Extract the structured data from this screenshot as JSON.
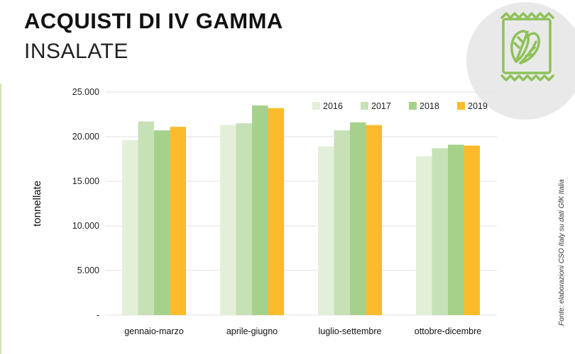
{
  "header": {
    "title": "ACQUISTI DI IV GAMMA",
    "subtitle": "INSALATE"
  },
  "source_note": "Fonte: elaborazioni CSO Italy su dati GfK Italia",
  "colors": {
    "s2016": "#e3f0d8",
    "s2017": "#c6e1b6",
    "s2018": "#a6d18b",
    "s2019": "#fbbb2b",
    "icon": "#8fc15a",
    "badge_bg": "#e9e9e9"
  },
  "icon": {
    "name": "salad-bag-icon"
  },
  "chart_data": {
    "type": "bar",
    "title": "ACQUISTI DI IV GAMMA – INSALATE",
    "xlabel": "",
    "ylabel": "tonnellate",
    "ylim": [
      0,
      25000
    ],
    "yticks": [
      0,
      5000,
      10000,
      15000,
      20000,
      25000
    ],
    "ytick_labels": [
      "-",
      "5.000",
      "10.000",
      "15.000",
      "20.000",
      "25.000"
    ],
    "grid": true,
    "legend_position": "top-right",
    "categories": [
      "gennaio-marzo",
      "aprile-giugno",
      "luglio-settembre",
      "ottobre-dicembre"
    ],
    "series": [
      {
        "name": "2016",
        "values": [
          19600,
          21300,
          18900,
          17800
        ]
      },
      {
        "name": "2017",
        "values": [
          21700,
          21500,
          20700,
          18700
        ]
      },
      {
        "name": "2018",
        "values": [
          20700,
          23500,
          21600,
          19100
        ]
      },
      {
        "name": "2019",
        "values": [
          21100,
          23200,
          21300,
          19000
        ]
      }
    ]
  }
}
